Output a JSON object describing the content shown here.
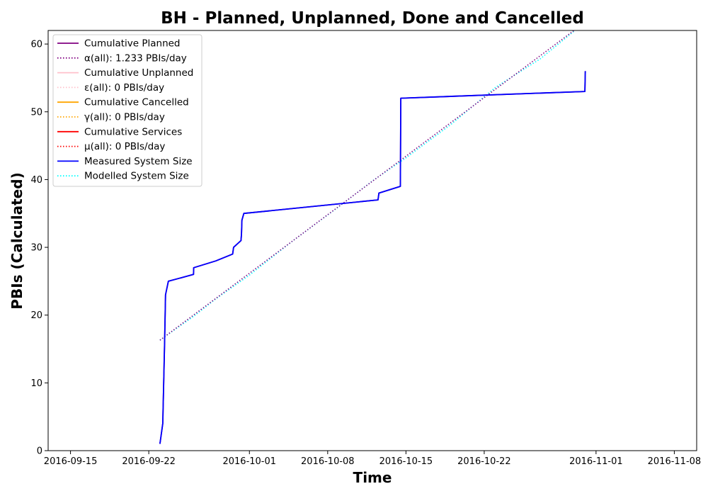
{
  "chart_data": {
    "type": "line",
    "title": "BH - Planned, Unplanned, Done  and Cancelled",
    "xlabel": "Time",
    "ylabel": "PBIs (Calculated)",
    "xlim": [
      "2016-09-13",
      "2016-11-10"
    ],
    "ylim": [
      0,
      62
    ],
    "x_ticks": [
      "2016-09-15",
      "2016-09-22",
      "2016-10-01",
      "2016-10-08",
      "2016-10-15",
      "2016-10-22",
      "2016-11-01",
      "2016-11-08"
    ],
    "y_ticks": [
      0,
      10,
      20,
      30,
      40,
      50,
      60
    ],
    "grid": false,
    "legend_position": "upper-left",
    "legend": [
      {
        "label": "Cumulative Planned",
        "color": "#800080",
        "style": "solid"
      },
      {
        "label": "α(all): 1.233 PBIs/day",
        "color": "#800080",
        "style": "dotted"
      },
      {
        "label": "Cumulative Unplanned",
        "color": "#ffc0cb",
        "style": "solid"
      },
      {
        "label": "ε(all): 0 PBIs/day",
        "color": "#ffc0cb",
        "style": "dotted"
      },
      {
        "label": "Cumulative Cancelled",
        "color": "#ffa500",
        "style": "solid"
      },
      {
        "label": "γ(all): 0 PBIs/day",
        "color": "#ffa500",
        "style": "dotted"
      },
      {
        "label": "Cumulative Services",
        "color": "#ff0000",
        "style": "solid"
      },
      {
        "label": "μ(all): 0 PBIs/day",
        "color": "#ff0000",
        "style": "dotted"
      },
      {
        "label": "Measured System Size",
        "color": "#0000ff",
        "style": "solid"
      },
      {
        "label": "Modelled System Size",
        "color": "#00ffff",
        "style": "dotted"
      }
    ],
    "series": [
      {
        "name": "Cumulative Planned",
        "color": "#800080",
        "style": "solid",
        "points": [
          [
            "2016-09-23",
            1
          ],
          [
            "2016-09-23T06:00",
            4
          ],
          [
            "2016-09-23T10:00",
            16
          ],
          [
            "2016-09-23T12:00",
            23
          ],
          [
            "2016-09-23T18:00",
            25
          ],
          [
            "2016-09-26",
            26
          ],
          [
            "2016-09-26T00:30",
            27
          ],
          [
            "2016-09-28",
            28
          ],
          [
            "2016-09-29T12:00",
            29
          ],
          [
            "2016-09-29T14:00",
            30
          ],
          [
            "2016-09-30T06:00",
            31
          ],
          [
            "2016-09-30T07:00",
            32
          ],
          [
            "2016-09-30T08:00",
            34
          ],
          [
            "2016-09-30T12:00",
            35
          ],
          [
            "2016-10-12T12:00",
            37
          ],
          [
            "2016-10-12T14:00",
            38
          ],
          [
            "2016-10-14T12:00",
            39
          ],
          [
            "2016-10-14T13:00",
            52
          ],
          [
            "2016-10-31",
            53
          ],
          [
            "2016-10-31T01:00",
            56
          ]
        ]
      },
      {
        "name": "α(all): 1.233 PBIs/day",
        "color": "#800080",
        "style": "dotted",
        "points": [
          [
            "2016-09-23",
            16.3
          ],
          [
            "2016-10-31",
            63.2
          ]
        ]
      },
      {
        "name": "Measured System Size",
        "color": "#0000ff",
        "style": "solid",
        "points": [
          [
            "2016-09-23",
            1
          ],
          [
            "2016-09-23T06:00",
            4
          ],
          [
            "2016-09-23T10:00",
            16
          ],
          [
            "2016-09-23T12:00",
            23
          ],
          [
            "2016-09-23T18:00",
            25
          ],
          [
            "2016-09-26",
            26
          ],
          [
            "2016-09-26T00:30",
            27
          ],
          [
            "2016-09-28",
            28
          ],
          [
            "2016-09-29T12:00",
            29
          ],
          [
            "2016-09-29T14:00",
            30
          ],
          [
            "2016-09-30T06:00",
            31
          ],
          [
            "2016-09-30T07:00",
            32
          ],
          [
            "2016-09-30T08:00",
            34
          ],
          [
            "2016-09-30T12:00",
            35
          ],
          [
            "2016-10-12T12:00",
            37
          ],
          [
            "2016-10-12T14:00",
            38
          ],
          [
            "2016-10-14T12:00",
            39
          ],
          [
            "2016-10-14T13:00",
            52
          ],
          [
            "2016-10-31",
            53
          ],
          [
            "2016-10-31T01:00",
            56
          ]
        ]
      },
      {
        "name": "Modelled System Size",
        "color": "#00ffff",
        "style": "dotted",
        "points": [
          [
            "2016-09-23",
            16.3
          ],
          [
            "2016-09-26",
            19.8
          ],
          [
            "2016-09-28",
            22.4
          ],
          [
            "2016-10-01",
            25.9
          ],
          [
            "2016-10-05",
            31.1
          ],
          [
            "2016-10-09",
            36.0
          ],
          [
            "2016-10-12",
            39.8
          ],
          [
            "2016-10-15",
            43.2
          ],
          [
            "2016-10-19",
            48.1
          ],
          [
            "2016-10-23",
            53.6
          ],
          [
            "2016-10-27",
            57.8
          ],
          [
            "2016-10-31",
            63.2
          ]
        ]
      }
    ]
  }
}
